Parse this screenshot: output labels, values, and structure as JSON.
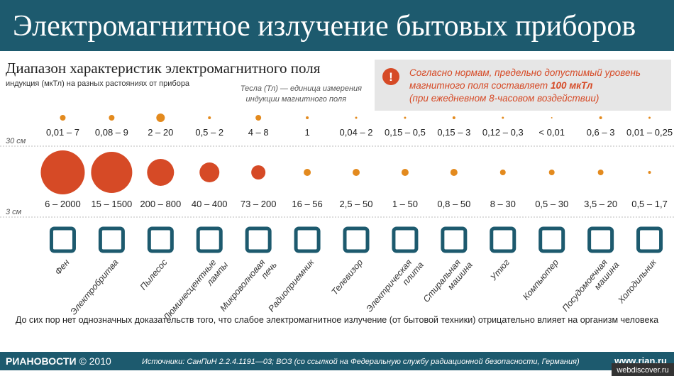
{
  "header": {
    "title": "Электромагнитное излучение бытовых приборов"
  },
  "subtitle": "Диапазон характеристик электромагнитного поля",
  "note": "индукция (мкТл) на разных растояниях от прибора",
  "unit_note": [
    "Тесла (Тл) — единица измерения",
    "индукции магнитного поля"
  ],
  "warning": {
    "line1": "Согласно нормам, предельно допустимый уровень",
    "line2a": "магнитного поля составляет",
    "line2b": "100 мкТл",
    "line3": "(при ежедневном 8-часовом воздействии)"
  },
  "distances": [
    "30 см",
    "3 см"
  ],
  "appliances": [
    {
      "name": [
        "Фен"
      ],
      "far": "0,01 – 7",
      "near": "6 – 2000"
    },
    {
      "name": [
        "Электробритва"
      ],
      "far": "0,08 – 9",
      "near": "15 – 1500"
    },
    {
      "name": [
        "Пылесос"
      ],
      "far": "2 – 20",
      "near": "200 – 800"
    },
    {
      "name": [
        "Люминесцентные",
        "лампы"
      ],
      "far": "0,5 – 2",
      "near": "40 – 400"
    },
    {
      "name": [
        "Микроволновая",
        "печь"
      ],
      "far": "4 – 8",
      "near": "73 – 200"
    },
    {
      "name": [
        "Радиоприемник"
      ],
      "far": "1",
      "near": "16 – 56"
    },
    {
      "name": [
        "Телевизор"
      ],
      "far": "0,04 – 2",
      "near": "2,5 – 50"
    },
    {
      "name": [
        "Электрическая",
        "плита"
      ],
      "far": "0,15 – 0,5",
      "near": "1 – 50"
    },
    {
      "name": [
        "Стиральная",
        "машина"
      ],
      "far": "0,15 – 3",
      "near": "0,8 – 50"
    },
    {
      "name": [
        "Утюг"
      ],
      "far": "0,12 – 0,3",
      "near": "8 – 30"
    },
    {
      "name": [
        "Компьютер"
      ],
      "far": "< 0,01",
      "near": "0,5 – 30"
    },
    {
      "name": [
        "Посудомоечная",
        "машина"
      ],
      "far": "0,6 – 3",
      "near": "3,5 – 20"
    },
    {
      "name": [
        "Холодильник"
      ],
      "far": "0,01 – 0,25",
      "near": "0,5 – 1,7"
    }
  ],
  "footer": {
    "conclusion": "До сих пор нет однозначных доказательств того, что слабое электромагнитное излучение (от бытовой техники) отрицательно влияет на организм человека",
    "brand": "РИАНОВОСТИ",
    "copyright": "© 2010",
    "sources": "Источники: СанПиН 2.2.4.1191—03; ВОЗ (со ссылкой на Федеральную службу радиационной безопасности, Германия)",
    "site": "www.rian.ru",
    "watermark": "webdiscover.ru"
  }
}
